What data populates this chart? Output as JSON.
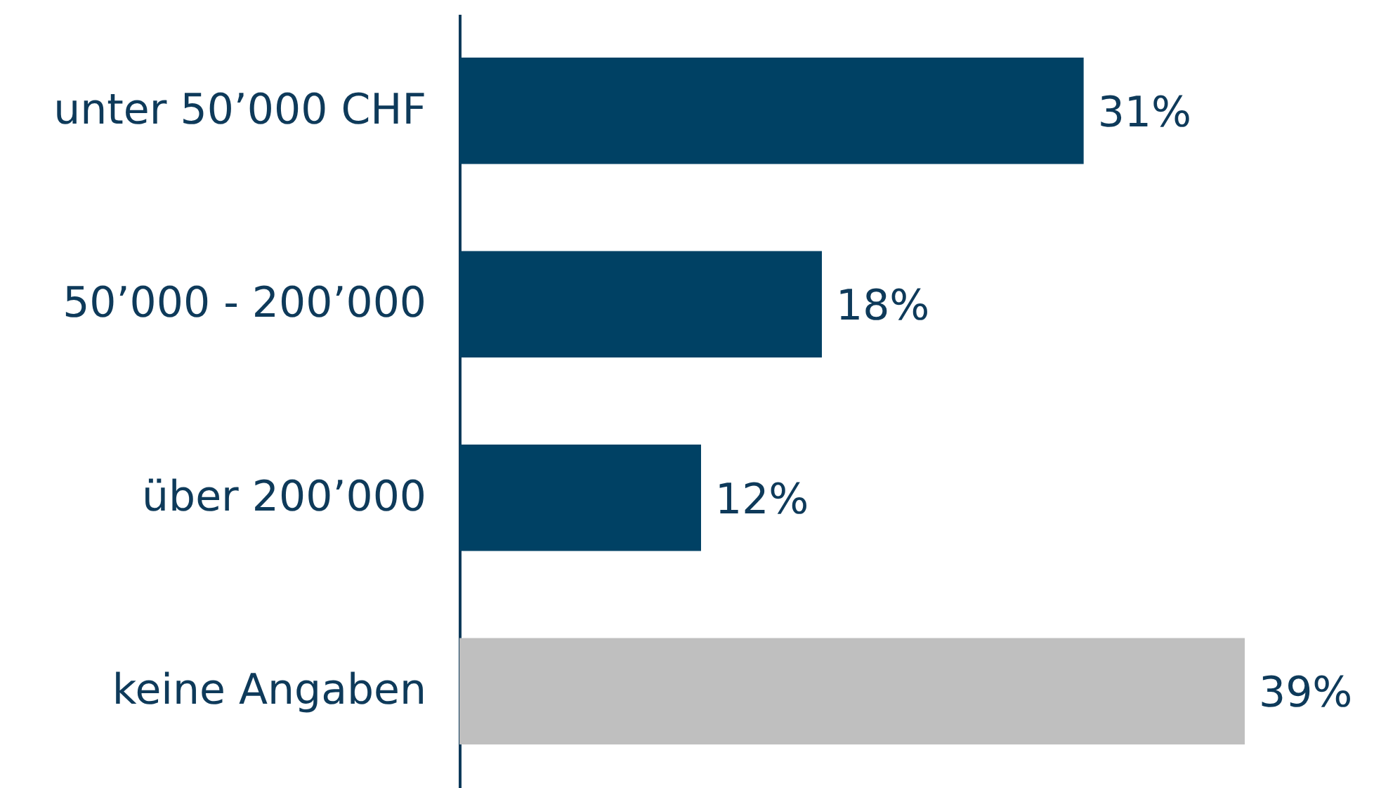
{
  "chart_data": {
    "type": "bar",
    "orientation": "horizontal",
    "categories": [
      "unter 50’000 CHF",
      "50’000 - 200’000",
      "über 200’000",
      "keine Angaben"
    ],
    "values": [
      31,
      18,
      12,
      39
    ],
    "colors": [
      "#004164",
      "#004164",
      "#004164",
      "#bfbfbf"
    ],
    "value_labels": [
      "31%",
      "18%",
      "12%",
      "39%"
    ]
  }
}
